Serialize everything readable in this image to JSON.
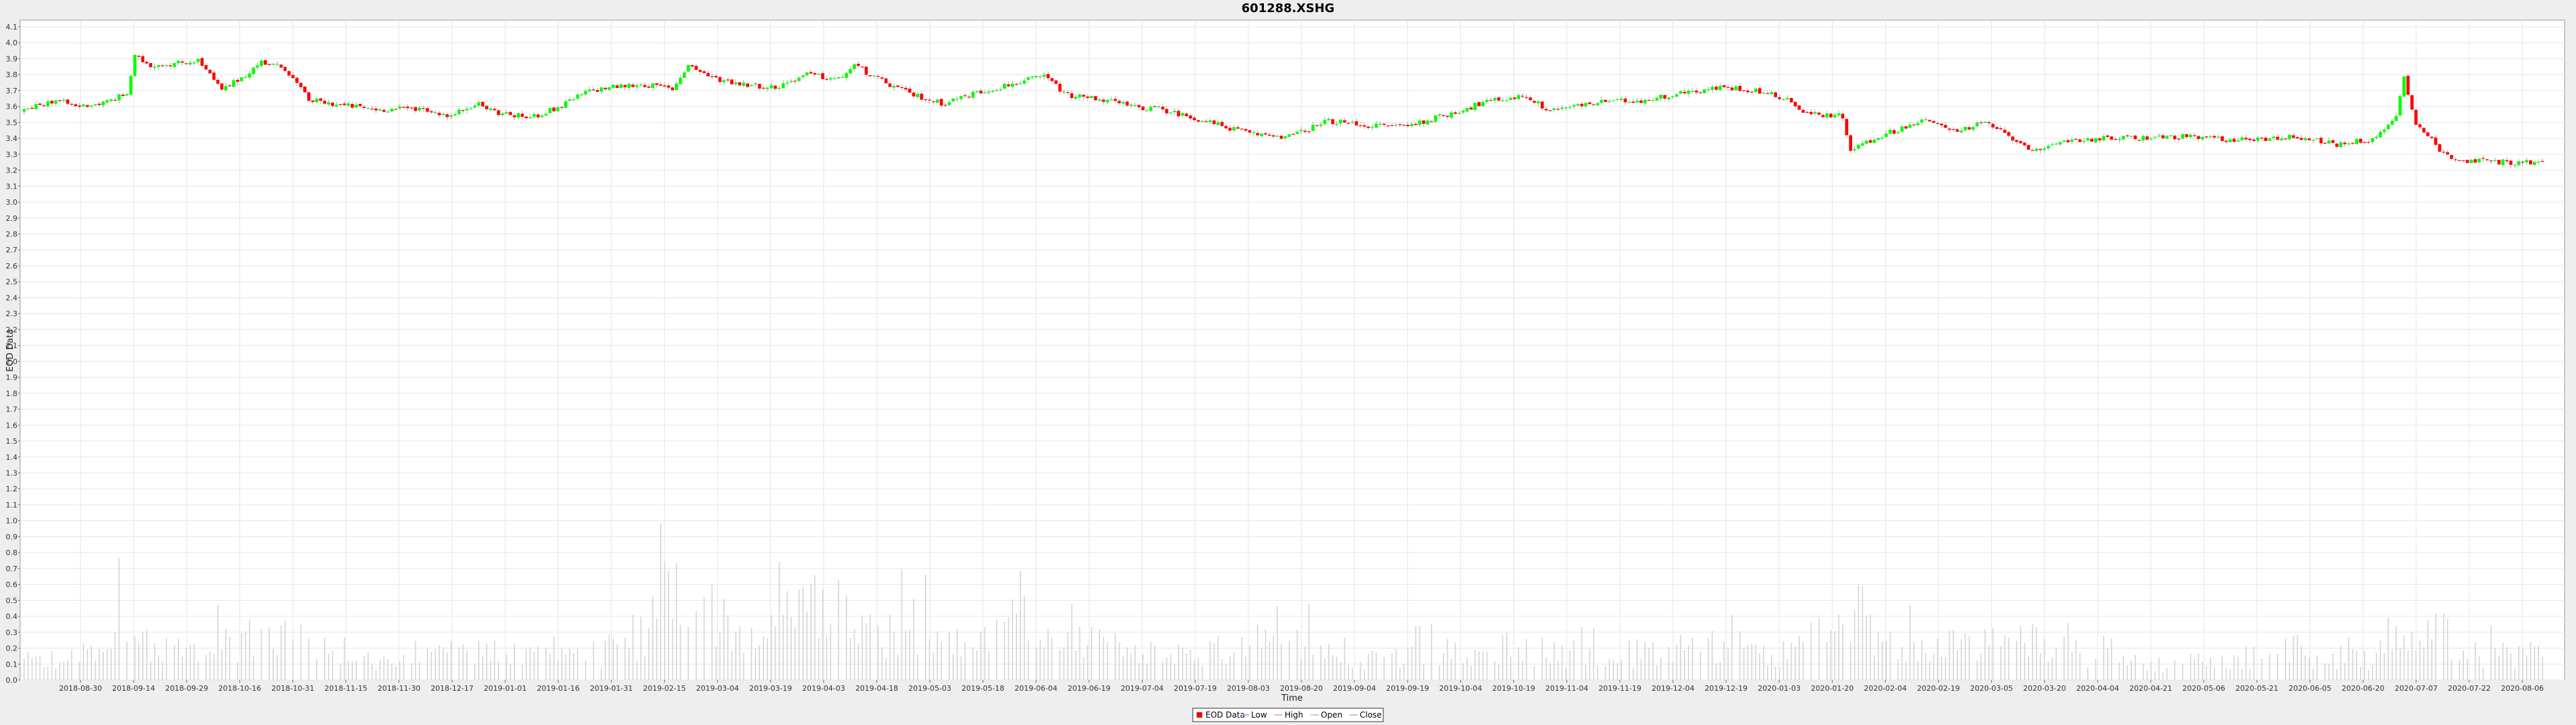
{
  "chart_data": {
    "type": "candlestick",
    "title": "601288.XSHG",
    "xlabel": "Time",
    "ylabel": "EOD Data",
    "ylim": [
      0.0,
      4.1
    ],
    "y_ticks": [
      "0.0",
      "0.1",
      "0.2",
      "0.3",
      "0.4",
      "0.5",
      "0.6",
      "0.7",
      "0.8",
      "0.9",
      "1.0",
      "1.1",
      "1.2",
      "1.3",
      "1.4",
      "1.5",
      "1.6",
      "1.7",
      "1.8",
      "1.9",
      "2.0",
      "2.1",
      "2.2",
      "2.3",
      "2.4",
      "2.5",
      "2.6",
      "2.7",
      "2.8",
      "2.9",
      "3.0",
      "3.1",
      "3.2",
      "3.3",
      "3.4",
      "3.5",
      "3.6",
      "3.7",
      "3.8",
      "3.9",
      "4.0",
      "4.1"
    ],
    "x_ticks": [
      "2018-08-30",
      "2018-09-14",
      "2018-09-29",
      "2018-10-16",
      "2018-10-31",
      "2018-11-15",
      "2018-11-30",
      "2018-12-17",
      "2019-01-01",
      "2019-01-16",
      "2019-01-31",
      "2019-02-15",
      "2019-03-04",
      "2019-03-19",
      "2019-04-03",
      "2019-04-18",
      "2019-05-03",
      "2019-05-18",
      "2019-06-04",
      "2019-06-19",
      "2019-07-04",
      "2019-07-19",
      "2019-08-03",
      "2019-08-20",
      "2019-09-04",
      "2019-09-19",
      "2019-10-04",
      "2019-10-19",
      "2019-11-04",
      "2019-11-19",
      "2019-12-04",
      "2019-12-19",
      "2020-01-03",
      "2020-01-20",
      "2020-02-04",
      "2020-02-19",
      "2020-03-05",
      "2020-03-20",
      "2020-04-04",
      "2020-04-21",
      "2020-05-06",
      "2020-05-21",
      "2020-06-05",
      "2020-06-20",
      "2020-07-07",
      "2020-07-22",
      "2020-08-06"
    ],
    "grid": true,
    "legend": {
      "placement": "bottom",
      "entries": [
        "EOD Data",
        "Low",
        "High",
        "Open",
        "Close"
      ]
    },
    "colors": {
      "up": "#00ff00",
      "down": "#ff0000",
      "volume": "#d4d4d4",
      "background": "#ffffff",
      "grid": "#e6e6e6"
    },
    "price_path": [
      [
        0,
        3.57
      ],
      [
        4,
        3.61
      ],
      [
        8,
        3.64
      ],
      [
        13,
        3.6
      ],
      [
        20,
        3.62
      ],
      [
        26,
        3.68
      ],
      [
        28,
        3.91
      ],
      [
        32,
        3.86
      ],
      [
        38,
        3.87
      ],
      [
        44,
        3.89
      ],
      [
        50,
        3.7
      ],
      [
        56,
        3.8
      ],
      [
        60,
        3.88
      ],
      [
        66,
        3.84
      ],
      [
        72,
        3.64
      ],
      [
        80,
        3.61
      ],
      [
        90,
        3.58
      ],
      [
        100,
        3.59
      ],
      [
        108,
        3.54
      ],
      [
        114,
        3.62
      ],
      [
        120,
        3.56
      ],
      [
        128,
        3.53
      ],
      [
        135,
        3.59
      ],
      [
        142,
        3.69
      ],
      [
        148,
        3.72
      ],
      [
        156,
        3.74
      ],
      [
        164,
        3.71
      ],
      [
        168,
        3.86
      ],
      [
        174,
        3.78
      ],
      [
        182,
        3.74
      ],
      [
        190,
        3.72
      ],
      [
        198,
        3.8
      ],
      [
        206,
        3.77
      ],
      [
        210,
        3.86
      ],
      [
        216,
        3.77
      ],
      [
        224,
        3.68
      ],
      [
        232,
        3.62
      ],
      [
        240,
        3.68
      ],
      [
        248,
        3.73
      ],
      [
        258,
        3.79
      ],
      [
        264,
        3.67
      ],
      [
        272,
        3.65
      ],
      [
        280,
        3.6
      ],
      [
        288,
        3.58
      ],
      [
        300,
        3.5
      ],
      [
        310,
        3.43
      ],
      [
        320,
        3.41
      ],
      [
        330,
        3.51
      ],
      [
        340,
        3.48
      ],
      [
        350,
        3.48
      ],
      [
        360,
        3.55
      ],
      [
        370,
        3.63
      ],
      [
        380,
        3.67
      ],
      [
        385,
        3.58
      ],
      [
        392,
        3.6
      ],
      [
        400,
        3.63
      ],
      [
        410,
        3.64
      ],
      [
        420,
        3.69
      ],
      [
        430,
        3.72
      ],
      [
        438,
        3.7
      ],
      [
        446,
        3.65
      ],
      [
        450,
        3.56
      ],
      [
        460,
        3.54
      ],
      [
        462,
        3.33
      ],
      [
        470,
        3.42
      ],
      [
        480,
        3.51
      ],
      [
        490,
        3.45
      ],
      [
        496,
        3.5
      ],
      [
        505,
        3.37
      ],
      [
        510,
        3.31
      ],
      [
        516,
        3.39
      ],
      [
        530,
        3.4
      ],
      [
        545,
        3.41
      ],
      [
        560,
        3.39
      ],
      [
        575,
        3.41
      ],
      [
        585,
        3.36
      ],
      [
        595,
        3.4
      ],
      [
        600,
        3.55
      ],
      [
        602,
        3.78
      ],
      [
        605,
        3.5
      ],
      [
        612,
        3.3
      ],
      [
        618,
        3.26
      ],
      [
        630,
        3.25
      ],
      [
        637,
        3.25
      ]
    ],
    "volume_path": [
      [
        0,
        0.14
      ],
      [
        20,
        0.2
      ],
      [
        25,
        0.55
      ],
      [
        35,
        0.22
      ],
      [
        50,
        0.3
      ],
      [
        65,
        0.35
      ],
      [
        80,
        0.22
      ],
      [
        95,
        0.13
      ],
      [
        110,
        0.22
      ],
      [
        125,
        0.25
      ],
      [
        140,
        0.2
      ],
      [
        155,
        0.26
      ],
      [
        165,
        0.85
      ],
      [
        175,
        0.58
      ],
      [
        185,
        0.38
      ],
      [
        195,
        0.52
      ],
      [
        205,
        0.6
      ],
      [
        215,
        0.32
      ],
      [
        225,
        0.48
      ],
      [
        235,
        0.26
      ],
      [
        250,
        0.45
      ],
      [
        265,
        0.3
      ],
      [
        280,
        0.22
      ],
      [
        295,
        0.18
      ],
      [
        310,
        0.28
      ],
      [
        325,
        0.3
      ],
      [
        340,
        0.17
      ],
      [
        355,
        0.22
      ],
      [
        370,
        0.25
      ],
      [
        385,
        0.22
      ],
      [
        400,
        0.2
      ],
      [
        415,
        0.24
      ],
      [
        430,
        0.26
      ],
      [
        445,
        0.22
      ],
      [
        460,
        0.4
      ],
      [
        475,
        0.3
      ],
      [
        490,
        0.25
      ],
      [
        505,
        0.32
      ],
      [
        520,
        0.2
      ],
      [
        535,
        0.13
      ],
      [
        550,
        0.14
      ],
      [
        565,
        0.13
      ],
      [
        580,
        0.2
      ],
      [
        595,
        0.14
      ],
      [
        600,
        0.45
      ],
      [
        610,
        0.38
      ],
      [
        620,
        0.22
      ],
      [
        637,
        0.2
      ]
    ]
  }
}
